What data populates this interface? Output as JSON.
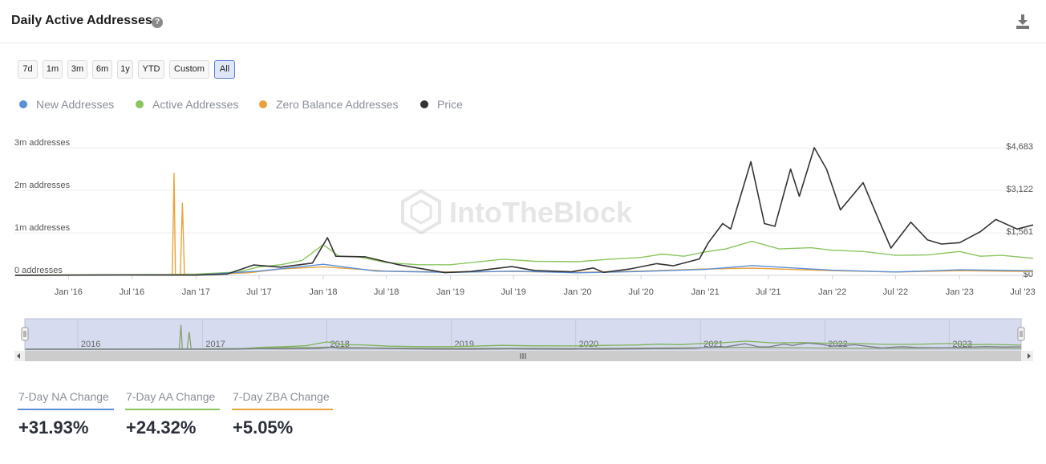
{
  "header": {
    "title": "Daily Active Addresses",
    "help_icon": "question-circle-icon",
    "download_icon": "download-icon"
  },
  "ranges": [
    {
      "label": "7d",
      "active": false
    },
    {
      "label": "1m",
      "active": false
    },
    {
      "label": "3m",
      "active": false
    },
    {
      "label": "6m",
      "active": false
    },
    {
      "label": "1y",
      "active": false
    },
    {
      "label": "YTD",
      "active": false
    },
    {
      "label": "Custom",
      "active": false
    },
    {
      "label": "All",
      "active": true
    }
  ],
  "legend": [
    {
      "label": "New Addresses",
      "color": "#5b8fd9"
    },
    {
      "label": "Active Addresses",
      "color": "#8cc560"
    },
    {
      "label": "Zero Balance Addresses",
      "color": "#e8a33d"
    },
    {
      "label": "Price",
      "color": "#333333"
    }
  ],
  "watermark": "IntoTheBlock",
  "stats": [
    {
      "label": "7-Day NA Change",
      "value": "+31.93%",
      "color": "#5b8fd9"
    },
    {
      "label": "7-Day AA Change",
      "value": "+24.32%",
      "color": "#8cc560"
    },
    {
      "label": "7-Day ZBA Change",
      "value": "+5.05%",
      "color": "#e8a33d"
    }
  ],
  "chart_data": {
    "type": "line",
    "title": "Daily Active Addresses",
    "x_range": [
      "2015-07-30",
      "2023-07-31"
    ],
    "left_axis": {
      "ticks": [
        0,
        1000000,
        2000000,
        3000000
      ],
      "tick_labels": [
        "0 addresses",
        "1m addresses",
        "2m addresses",
        "3m addresses"
      ]
    },
    "right_axis": {
      "ticks": [
        0,
        1561,
        3122,
        4683
      ],
      "tick_labels": [
        "$0",
        "$1,561",
        "$3,122",
        "$4,683"
      ]
    },
    "x_ticks": [
      "2016-01-01",
      "2016-07-01",
      "2017-01-01",
      "2017-07-01",
      "2018-01-01",
      "2018-07-01",
      "2019-01-01",
      "2019-07-01",
      "2020-01-01",
      "2020-07-01",
      "2021-01-01",
      "2021-07-01",
      "2022-01-01",
      "2022-07-01",
      "2023-01-01",
      "2023-07-01"
    ],
    "x_tick_labels": [
      "Jan '16",
      "Jul '16",
      "Jan '17",
      "Jul '17",
      "Jan '18",
      "Jul '18",
      "Jan '19",
      "Jul '19",
      "Jan '20",
      "Jul '20",
      "Jan '21",
      "Jul '21",
      "Jan '22",
      "Jul '22",
      "Jan '23",
      "Jul '23"
    ],
    "grid": true,
    "legend_position": "top-left",
    "series": [
      {
        "name": "Active Addresses",
        "axis": "left",
        "points": [
          [
            "2015-08-01",
            5000
          ],
          [
            "2016-01-01",
            10000
          ],
          [
            "2016-06-01",
            15000
          ],
          [
            "2016-10-01",
            20000
          ],
          [
            "2017-01-01",
            30000
          ],
          [
            "2017-05-01",
            80000
          ],
          [
            "2017-07-01",
            200000
          ],
          [
            "2017-09-01",
            250000
          ],
          [
            "2017-11-01",
            350000
          ],
          [
            "2018-01-01",
            720000
          ],
          [
            "2018-02-15",
            450000
          ],
          [
            "2018-04-15",
            430000
          ],
          [
            "2018-07-01",
            300000
          ],
          [
            "2018-10-01",
            250000
          ],
          [
            "2019-01-01",
            250000
          ],
          [
            "2019-03-01",
            300000
          ],
          [
            "2019-06-01",
            380000
          ],
          [
            "2019-09-01",
            330000
          ],
          [
            "2020-01-01",
            320000
          ],
          [
            "2020-04-01",
            380000
          ],
          [
            "2020-07-01",
            420000
          ],
          [
            "2020-09-01",
            500000
          ],
          [
            "2020-11-01",
            450000
          ],
          [
            "2021-01-01",
            550000
          ],
          [
            "2021-03-01",
            620000
          ],
          [
            "2021-05-15",
            800000
          ],
          [
            "2021-08-01",
            620000
          ],
          [
            "2021-11-01",
            650000
          ],
          [
            "2022-01-01",
            590000
          ],
          [
            "2022-04-01",
            560000
          ],
          [
            "2022-07-01",
            470000
          ],
          [
            "2022-10-01",
            480000
          ],
          [
            "2023-01-01",
            560000
          ],
          [
            "2023-03-01",
            450000
          ],
          [
            "2023-05-01",
            470000
          ],
          [
            "2023-07-31",
            400000
          ]
        ]
      },
      {
        "name": "Zero Balance Addresses",
        "axis": "left",
        "points": [
          [
            "2015-08-01",
            2000
          ],
          [
            "2016-06-01",
            8000
          ],
          [
            "2016-10-25",
            8000
          ],
          [
            "2016-10-30",
            2400000
          ],
          [
            "2016-11-03",
            10000
          ],
          [
            "2016-11-17",
            10000
          ],
          [
            "2016-11-23",
            1700000
          ],
          [
            "2016-11-29",
            10000
          ],
          [
            "2017-01-01",
            12000
          ],
          [
            "2017-06-01",
            60000
          ],
          [
            "2017-09-01",
            150000
          ],
          [
            "2018-01-01",
            200000
          ],
          [
            "2018-07-01",
            100000
          ],
          [
            "2019-01-01",
            80000
          ],
          [
            "2019-07-01",
            90000
          ],
          [
            "2020-01-01",
            70000
          ],
          [
            "2020-07-01",
            100000
          ],
          [
            "2021-01-01",
            150000
          ],
          [
            "2021-05-15",
            170000
          ],
          [
            "2022-01-01",
            110000
          ],
          [
            "2022-07-01",
            80000
          ],
          [
            "2023-01-01",
            110000
          ],
          [
            "2023-07-31",
            90000
          ]
        ]
      },
      {
        "name": "New Addresses",
        "axis": "left",
        "points": [
          [
            "2015-08-01",
            2000
          ],
          [
            "2017-01-01",
            10000
          ],
          [
            "2017-07-01",
            100000
          ],
          [
            "2018-01-01",
            260000
          ],
          [
            "2018-06-01",
            100000
          ],
          [
            "2019-01-01",
            70000
          ],
          [
            "2019-07-01",
            100000
          ],
          [
            "2020-01-01",
            60000
          ],
          [
            "2020-07-01",
            90000
          ],
          [
            "2021-01-01",
            140000
          ],
          [
            "2021-05-15",
            230000
          ],
          [
            "2022-01-01",
            120000
          ],
          [
            "2022-07-01",
            80000
          ],
          [
            "2023-01-01",
            130000
          ],
          [
            "2023-07-31",
            110000
          ]
        ]
      },
      {
        "name": "Price",
        "axis": "right",
        "points": [
          [
            "2015-08-01",
            2
          ],
          [
            "2016-06-01",
            14
          ],
          [
            "2017-01-01",
            8
          ],
          [
            "2017-04-01",
            50
          ],
          [
            "2017-06-15",
            380
          ],
          [
            "2017-09-01",
            300
          ],
          [
            "2017-12-01",
            450
          ],
          [
            "2018-01-13",
            1380
          ],
          [
            "2018-02-06",
            700
          ],
          [
            "2018-05-01",
            680
          ],
          [
            "2018-08-01",
            400
          ],
          [
            "2018-12-15",
            100
          ],
          [
            "2019-03-01",
            140
          ],
          [
            "2019-06-26",
            320
          ],
          [
            "2019-09-01",
            175
          ],
          [
            "2019-12-15",
            130
          ],
          [
            "2020-02-15",
            270
          ],
          [
            "2020-03-15",
            110
          ],
          [
            "2020-06-01",
            240
          ],
          [
            "2020-08-15",
            430
          ],
          [
            "2020-10-01",
            350
          ],
          [
            "2020-12-15",
            600
          ],
          [
            "2021-01-10",
            1200
          ],
          [
            "2021-02-20",
            1900
          ],
          [
            "2021-03-15",
            1700
          ],
          [
            "2021-05-12",
            4170
          ],
          [
            "2021-06-20",
            1900
          ],
          [
            "2021-07-20",
            1800
          ],
          [
            "2021-09-03",
            3900
          ],
          [
            "2021-09-28",
            2900
          ],
          [
            "2021-11-10",
            4683
          ],
          [
            "2021-12-15",
            3900
          ],
          [
            "2022-01-24",
            2400
          ],
          [
            "2022-03-30",
            3400
          ],
          [
            "2022-05-15",
            2000
          ],
          [
            "2022-06-18",
            1000
          ],
          [
            "2022-08-14",
            1950
          ],
          [
            "2022-10-01",
            1300
          ],
          [
            "2022-11-10",
            1150
          ],
          [
            "2023-01-01",
            1200
          ],
          [
            "2023-03-01",
            1600
          ],
          [
            "2023-04-15",
            2050
          ],
          [
            "2023-06-15",
            1700
          ],
          [
            "2023-07-31",
            1850
          ]
        ]
      }
    ]
  },
  "navigator": {
    "year_labels": [
      "2016",
      "2017",
      "2018",
      "2019",
      "2020",
      "2021",
      "2022",
      "2023"
    ]
  }
}
